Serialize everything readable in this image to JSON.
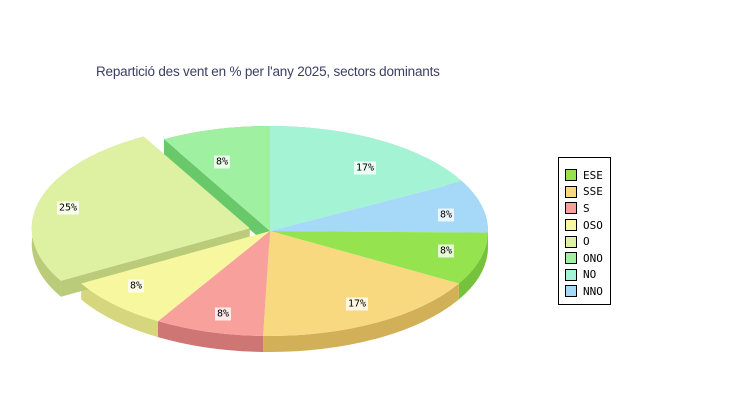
{
  "chart_data": {
    "type": "pie",
    "style": "3d-exploded-pie",
    "title": "Repartició des vent en % per l'any 2025, sectors dominants",
    "title_color": "#3A3F63",
    "unit": "%",
    "start_angle_deg": 90,
    "direction": "clockwise",
    "background": "#FFFFFF",
    "slices": [
      {
        "label": "NO",
        "value": 17,
        "display": "17%",
        "color": "#A5F3D5",
        "side_color": "#7FCCA9",
        "exploded": false
      },
      {
        "label": "NNO",
        "value": 8,
        "display": "8%",
        "color": "#A6D9F7",
        "side_color": "#82B4DC",
        "exploded": false
      },
      {
        "label": "ESE",
        "value": 8,
        "display": "8%",
        "color": "#95E44F",
        "side_color": "#76C23C",
        "exploded": false
      },
      {
        "label": "SSE",
        "value": 17,
        "display": "17%",
        "color": "#F8D980",
        "side_color": "#D2B057",
        "exploded": false
      },
      {
        "label": "S",
        "value": 8,
        "display": "8%",
        "color": "#F8A09C",
        "side_color": "#CD7673",
        "exploded": false
      },
      {
        "label": "OSO",
        "value": 8,
        "display": "8%",
        "color": "#F7F7A0",
        "side_color": "#D6D67E",
        "exploded": false
      },
      {
        "label": "O",
        "value": 25,
        "display": "25%",
        "color": "#DEF0A2",
        "side_color": "#BACC7A",
        "exploded": true
      },
      {
        "label": "ONO",
        "value": 8,
        "display": "8%",
        "color": "#9FF0A0",
        "side_color": "#69C869",
        "exploded": false
      }
    ],
    "legend": {
      "position": "right",
      "items": [
        "ESE",
        "SSE",
        "S",
        "OSO",
        "O",
        "ONO",
        "NO",
        "NNO"
      ]
    }
  }
}
